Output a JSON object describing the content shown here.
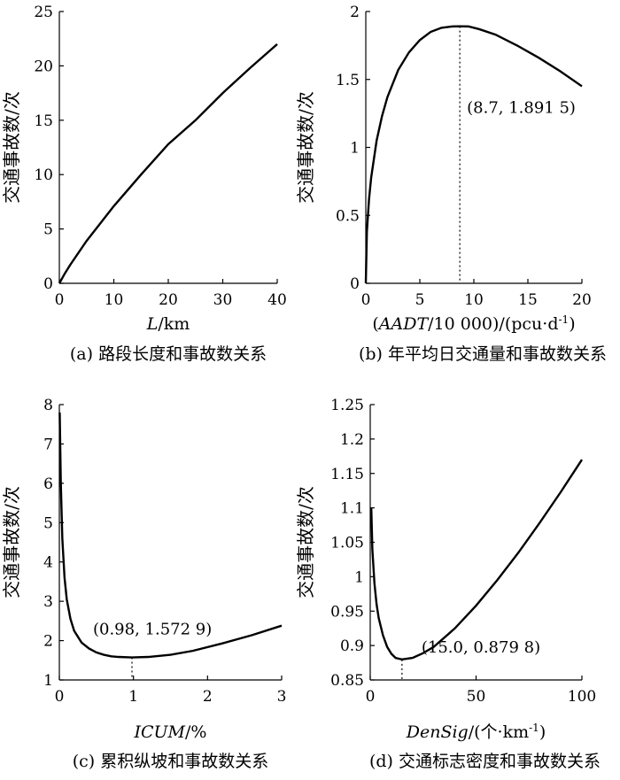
{
  "chart_data": [
    {
      "type": "line",
      "caption": "(a) 路段长度和事故数关系",
      "xlabel_parts": [
        {
          "t": "L",
          "i": true
        },
        {
          "t": "/km",
          "i": false
        }
      ],
      "ylabel": "交通事故数/次",
      "xlim": [
        0,
        40
      ],
      "ylim": [
        0,
        25
      ],
      "xticks": [
        0,
        10,
        20,
        30,
        40
      ],
      "yticks": [
        0,
        5,
        10,
        15,
        20,
        25
      ],
      "xtick_labels": [
        "0",
        "10",
        "20",
        "30",
        "40"
      ],
      "ytick_labels": [
        "0",
        "5",
        "10",
        "15",
        "20",
        "25"
      ],
      "series": [
        {
          "x": [
            0,
            1,
            2,
            5,
            10,
            15,
            20,
            25,
            30,
            35,
            40
          ],
          "y": [
            0,
            0.9,
            1.7,
            3.9,
            7.1,
            10.0,
            12.8,
            15.0,
            17.5,
            19.8,
            22.0
          ]
        }
      ],
      "annotation": null
    },
    {
      "type": "line",
      "caption": "(b) 年平均日交通量和事故数关系",
      "xlabel_parts": [
        {
          "t": "(",
          "i": false
        },
        {
          "t": "AADT",
          "i": true
        },
        {
          "t": "/10 000)/(pcu·d",
          "i": false
        },
        {
          "t": "-1",
          "i": false,
          "sup": true
        },
        {
          "t": ")",
          "i": false
        }
      ],
      "ylabel": "交通事故数/次",
      "xlim": [
        0,
        20
      ],
      "ylim": [
        0,
        2
      ],
      "xticks": [
        0,
        5,
        10,
        15,
        20
      ],
      "yticks": [
        0,
        0.5,
        1,
        1.5,
        2
      ],
      "xtick_labels": [
        "0",
        "5",
        "10",
        "15",
        "20"
      ],
      "ytick_labels": [
        "0",
        "0.5",
        "1",
        "1.5",
        "2"
      ],
      "series": [
        {
          "x": [
            0,
            0.1,
            0.3,
            0.5,
            1,
            1.5,
            2,
            3,
            4,
            5,
            6,
            7,
            8,
            8.7,
            9.5,
            10.5,
            12,
            14,
            16,
            18,
            20
          ],
          "y": [
            0,
            0.38,
            0.62,
            0.78,
            1.05,
            1.23,
            1.37,
            1.57,
            1.7,
            1.79,
            1.85,
            1.88,
            1.89,
            1.8915,
            1.89,
            1.87,
            1.83,
            1.75,
            1.66,
            1.56,
            1.45
          ]
        }
      ],
      "annotation": {
        "x": 8.7,
        "y": 1.8915,
        "label": "(8.7, 1.891 5)",
        "drop": true
      }
    },
    {
      "type": "line",
      "caption": "(c) 累积纵坡和事故数关系",
      "xlabel_parts": [
        {
          "t": "ICUM",
          "i": true
        },
        {
          "t": "/%",
          "i": false
        }
      ],
      "ylabel": "交通事故数/次",
      "xlim": [
        0,
        3
      ],
      "ylim": [
        1,
        8
      ],
      "xticks": [
        0,
        1,
        2,
        3
      ],
      "yticks": [
        1,
        2,
        3,
        4,
        5,
        6,
        7,
        8
      ],
      "xtick_labels": [
        "0",
        "1",
        "2",
        "3"
      ],
      "ytick_labels": [
        "1",
        "2",
        "3",
        "4",
        "5",
        "6",
        "7",
        "8"
      ],
      "series": [
        {
          "x": [
            0.005,
            0.02,
            0.04,
            0.07,
            0.1,
            0.15,
            0.2,
            0.3,
            0.4,
            0.5,
            0.6,
            0.7,
            0.8,
            0.98,
            1.2,
            1.5,
            1.8,
            2.2,
            2.6,
            3.0
          ],
          "y": [
            7.8,
            6.0,
            4.6,
            3.6,
            3.05,
            2.55,
            2.25,
            1.95,
            1.8,
            1.7,
            1.64,
            1.6,
            1.585,
            1.5729,
            1.585,
            1.64,
            1.74,
            1.93,
            2.14,
            2.38
          ]
        }
      ],
      "annotation": {
        "x": 0.98,
        "y": 1.5729,
        "label": "(0.98, 1.572 9)",
        "drop": true
      }
    },
    {
      "type": "line",
      "caption": "(d) 交通标志密度和事故数关系",
      "xlabel_parts": [
        {
          "t": "DenSig",
          "i": true
        },
        {
          "t": "/(个·km",
          "i": false
        },
        {
          "t": "-1",
          "i": false,
          "sup": true
        },
        {
          "t": ")",
          "i": false
        }
      ],
      "ylabel": "交通事故数/次",
      "xlim": [
        0,
        100
      ],
      "ylim": [
        0.85,
        1.25
      ],
      "xticks": [
        0,
        50,
        100
      ],
      "yticks": [
        0.85,
        0.9,
        0.95,
        1,
        1.05,
        1.1,
        1.15,
        1.2,
        1.25
      ],
      "xtick_labels": [
        "0",
        "50",
        "100"
      ],
      "ytick_labels": [
        "0.85",
        "0.9",
        "0.95",
        "1",
        "1.05",
        "1.1",
        "1.15",
        "1.2",
        "1.25"
      ],
      "series": [
        {
          "x": [
            0.5,
            1,
            2,
            3,
            4,
            6,
            8,
            10,
            12,
            15,
            20,
            25,
            30,
            40,
            50,
            60,
            70,
            80,
            90,
            100
          ],
          "y": [
            1.1,
            1.04,
            0.99,
            0.96,
            0.94,
            0.915,
            0.898,
            0.888,
            0.882,
            0.8798,
            0.882,
            0.889,
            0.898,
            0.925,
            0.958,
            0.995,
            1.035,
            1.078,
            1.123,
            1.17
          ]
        }
      ],
      "annotation": {
        "x": 15.0,
        "y": 0.8798,
        "label": "(15.0, 0.879 8)",
        "drop": true
      }
    }
  ]
}
